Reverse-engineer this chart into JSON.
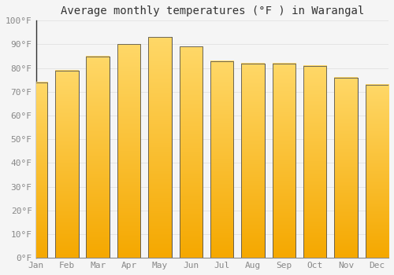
{
  "months": [
    "Jan",
    "Feb",
    "Mar",
    "Apr",
    "May",
    "Jun",
    "Jul",
    "Aug",
    "Sep",
    "Oct",
    "Nov",
    "Dec"
  ],
  "values": [
    74,
    79,
    85,
    90,
    93,
    89,
    83,
    82,
    82,
    81,
    76,
    73
  ],
  "bar_color_bottom": "#F5A800",
  "bar_color_top": "#FFD04A",
  "bar_edge_color": "#555555",
  "title": "Average monthly temperatures (°F ) in Warangal",
  "ylim": [
    0,
    100
  ],
  "ytick_step": 10,
  "background_color": "#f5f5f5",
  "grid_color": "#dddddd",
  "title_fontsize": 10,
  "tick_fontsize": 8,
  "font_family": "monospace",
  "tick_color": "#888888",
  "bar_width": 0.75
}
